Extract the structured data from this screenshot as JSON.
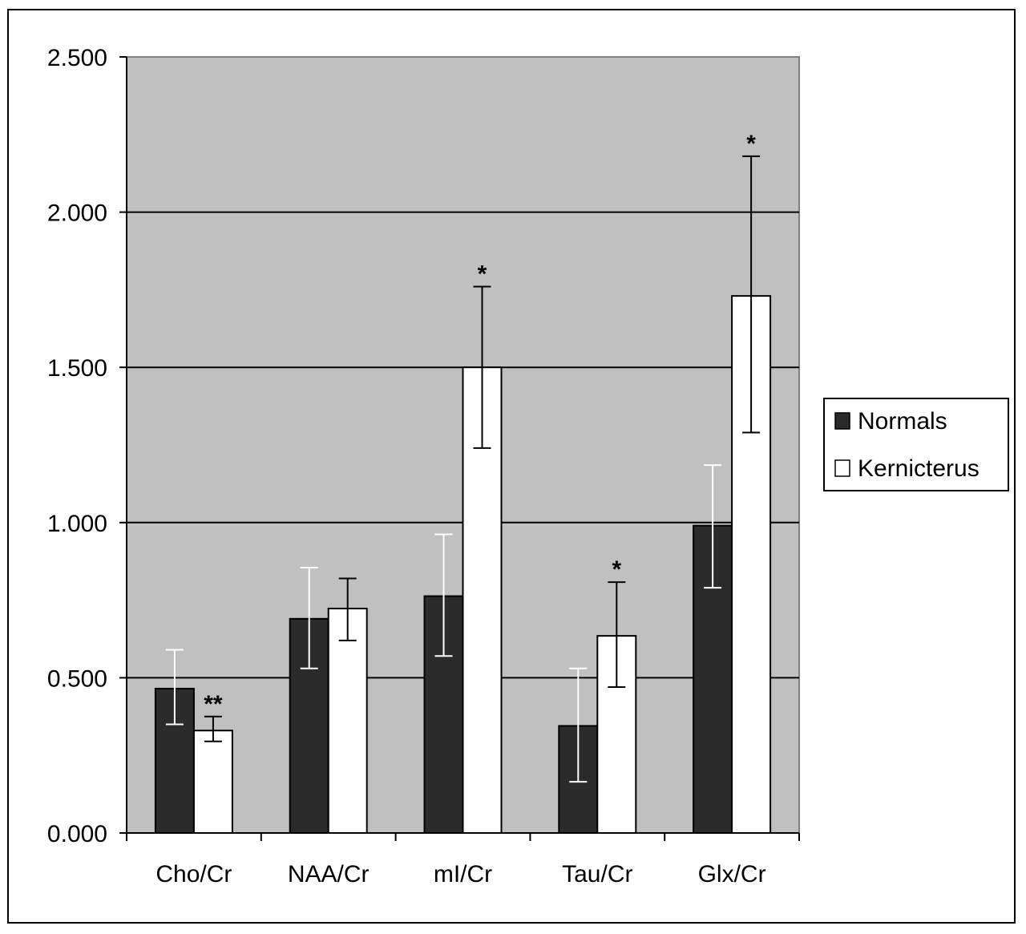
{
  "chart_data": {
    "type": "bar",
    "categories": [
      "Cho/Cr",
      "NAA/Cr",
      "mI/Cr",
      "Tau/Cr",
      "Glx/Cr"
    ],
    "series": [
      {
        "name": "Normals",
        "values": [
          0.465,
          0.69,
          0.763,
          0.345,
          0.99
        ],
        "error_low": [
          0.35,
          0.53,
          0.57,
          0.165,
          0.79
        ],
        "error_high": [
          0.59,
          0.855,
          0.962,
          0.53,
          1.185
        ],
        "significance": [
          "",
          "",
          "",
          "",
          ""
        ]
      },
      {
        "name": "Kernicterus",
        "values": [
          0.33,
          0.723,
          1.5,
          0.635,
          1.73
        ],
        "error_low": [
          0.295,
          0.62,
          1.24,
          0.47,
          1.29
        ],
        "error_high": [
          0.375,
          0.82,
          1.76,
          0.808,
          2.18
        ],
        "significance": [
          "**",
          "",
          "*",
          "*",
          "*"
        ]
      }
    ],
    "yticks": [
      "0.000",
      "0.500",
      "1.000",
      "1.500",
      "2.000",
      "2.500"
    ],
    "ylim": [
      0,
      2.5
    ],
    "xlabel": "",
    "ylabel": "",
    "title": "",
    "grid": true,
    "legend_position": "right",
    "colors": {
      "Normals": "#2b2b2b",
      "Kernicterus": "#ffffff",
      "plot_background": "#c0c0c0",
      "normals_errorbar": "#ffffff",
      "kernicterus_errorbar": "#000000"
    }
  }
}
